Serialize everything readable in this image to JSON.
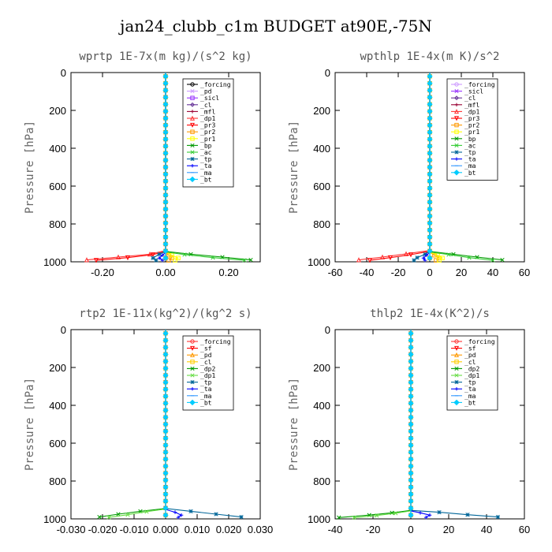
{
  "figure": {
    "title": "jan24_clubb_c1m  BUDGET at90E,-75N"
  },
  "chart_data": [
    {
      "type": "line",
      "title": "wprtp  1E-7x(m kg)/(s^2 kg)",
      "ylabel": "Pressure [hPa]",
      "xlim": [
        -0.3,
        0.3
      ],
      "ylim": [
        1000,
        0
      ],
      "xticks": [
        -0.2,
        0.0,
        0.2
      ],
      "xtick_labels": [
        "-0.20",
        "0.00",
        "0.20"
      ],
      "yticks": [
        0,
        200,
        400,
        600,
        800,
        1000
      ],
      "ytick_labels": [
        "0",
        "200",
        "400",
        "600",
        "800",
        "1000"
      ],
      "legend_position": "top-right",
      "series": [
        {
          "name": "_forcing",
          "color": "#000000",
          "marker": "o",
          "x": [
            0,
            0,
            0,
            0
          ],
          "y": [
            0,
            500,
            940,
            990
          ]
        },
        {
          "name": "_pd",
          "color": "#cc99ff",
          "marker": "x",
          "x": [
            0,
            0,
            0
          ],
          "y": [
            0,
            500,
            990
          ]
        },
        {
          "name": "_sicl",
          "color": "#9933ff",
          "marker": "s",
          "x": [
            0,
            0,
            0
          ],
          "y": [
            0,
            500,
            990
          ]
        },
        {
          "name": "_cl",
          "color": "#663399",
          "marker": "d",
          "x": [
            0,
            0,
            0
          ],
          "y": [
            0,
            500,
            990
          ]
        },
        {
          "name": "_mfl",
          "color": "#990033",
          "marker": "+",
          "x": [
            0,
            0,
            0
          ],
          "y": [
            0,
            500,
            990
          ]
        },
        {
          "name": "_dp1",
          "color": "#ff3333",
          "marker": "^",
          "x": [
            0,
            0,
            -0.05,
            -0.15,
            -0.25
          ],
          "y": [
            0,
            940,
            960,
            975,
            990
          ]
        },
        {
          "name": "_pr3",
          "color": "#ff0000",
          "marker": "v",
          "x": [
            0,
            0,
            -0.04,
            -0.12,
            -0.22
          ],
          "y": [
            0,
            945,
            962,
            978,
            992
          ]
        },
        {
          "name": "_pr2",
          "color": "#ff9900",
          "marker": "s",
          "x": [
            0,
            0,
            0.01,
            0.02,
            0.01
          ],
          "y": [
            0,
            950,
            965,
            980,
            992
          ]
        },
        {
          "name": "_pr1",
          "color": "#ffff00",
          "marker": "s",
          "x": [
            0,
            0,
            0.02,
            0.04,
            0.03
          ],
          "y": [
            0,
            950,
            965,
            980,
            992
          ]
        },
        {
          "name": "_bp",
          "color": "#009900",
          "marker": "x",
          "x": [
            0,
            0,
            0.08,
            0.18,
            0.27
          ],
          "y": [
            0,
            945,
            960,
            975,
            990
          ]
        },
        {
          "name": "_ac",
          "color": "#33cc33",
          "marker": "x",
          "x": [
            0,
            0,
            0.06,
            0.15,
            0.25
          ],
          "y": [
            0,
            948,
            962,
            978,
            992
          ]
        },
        {
          "name": "_tp",
          "color": "#006699",
          "marker": "*",
          "x": [
            0,
            0,
            -0.02,
            -0.04,
            -0.03
          ],
          "y": [
            0,
            945,
            960,
            980,
            992
          ]
        },
        {
          "name": "_ta",
          "color": "#0000ff",
          "marker": "+",
          "x": [
            0,
            0,
            -0.01,
            -0.02,
            -0.01
          ],
          "y": [
            0,
            950,
            965,
            980,
            992
          ]
        },
        {
          "name": "_ma",
          "color": "#3399ff",
          "marker": "-",
          "x": [
            0,
            0,
            0
          ],
          "y": [
            0,
            500,
            990
          ]
        },
        {
          "name": "_bt",
          "color": "#00ccff",
          "marker": "D",
          "x": [
            0,
            0,
            0
          ],
          "y": [
            0,
            500,
            990
          ]
        }
      ]
    },
    {
      "type": "line",
      "title": "wpthlp  1E-4x(m K)/s^2",
      "ylabel": "Pressure [hPa]",
      "xlim": [
        -60,
        60
      ],
      "ylim": [
        1000,
        0
      ],
      "xticks": [
        -60,
        -40,
        -20,
        0,
        20,
        40,
        60
      ],
      "xtick_labels": [
        "-60",
        "-40",
        "-20",
        "0",
        "20",
        "40",
        "60"
      ],
      "yticks": [
        0,
        200,
        400,
        600,
        800,
        1000
      ],
      "ytick_labels": [
        "0",
        "200",
        "400",
        "600",
        "800",
        "1000"
      ],
      "legend_position": "top-right",
      "series": [
        {
          "name": "_forcing",
          "color": "#cc99ff",
          "marker": "o",
          "x": [
            0,
            0,
            0
          ],
          "y": [
            0,
            500,
            990
          ]
        },
        {
          "name": "_sicl",
          "color": "#9933ff",
          "marker": "x",
          "x": [
            0,
            0,
            0
          ],
          "y": [
            0,
            500,
            990
          ]
        },
        {
          "name": "_cl",
          "color": "#663399",
          "marker": "d",
          "x": [
            0,
            0,
            0
          ],
          "y": [
            0,
            500,
            990
          ]
        },
        {
          "name": "_mfl",
          "color": "#990033",
          "marker": "+",
          "x": [
            0,
            0,
            0
          ],
          "y": [
            0,
            500,
            990
          ]
        },
        {
          "name": "_dp1",
          "color": "#ff3333",
          "marker": "^",
          "x": [
            0,
            0,
            -15,
            -30,
            -45
          ],
          "y": [
            0,
            940,
            958,
            975,
            990
          ]
        },
        {
          "name": "_pr3",
          "color": "#ff0000",
          "marker": "v",
          "x": [
            0,
            0,
            -12,
            -25,
            -38
          ],
          "y": [
            0,
            945,
            962,
            978,
            992
          ]
        },
        {
          "name": "_pr2",
          "color": "#ff9900",
          "marker": "s",
          "x": [
            0,
            0,
            3,
            6,
            4
          ],
          "y": [
            0,
            950,
            965,
            980,
            992
          ]
        },
        {
          "name": "_pr1",
          "color": "#ffff00",
          "marker": "s",
          "x": [
            0,
            0,
            5,
            8,
            6
          ],
          "y": [
            0,
            950,
            965,
            980,
            992
          ]
        },
        {
          "name": "_bp",
          "color": "#009900",
          "marker": "x",
          "x": [
            0,
            0,
            15,
            30,
            46
          ],
          "y": [
            0,
            945,
            960,
            975,
            990
          ]
        },
        {
          "name": "_ac",
          "color": "#33cc33",
          "marker": "x",
          "x": [
            0,
            0,
            12,
            25,
            40
          ],
          "y": [
            0,
            948,
            962,
            978,
            992
          ]
        },
        {
          "name": "_tp",
          "color": "#006699",
          "marker": "*",
          "x": [
            0,
            0,
            -3,
            -8,
            -10
          ],
          "y": [
            0,
            945,
            960,
            978,
            992
          ]
        },
        {
          "name": "_ta",
          "color": "#0000ff",
          "marker": "+",
          "x": [
            0,
            0,
            -2,
            -4,
            -3
          ],
          "y": [
            0,
            950,
            965,
            980,
            992
          ]
        },
        {
          "name": "_ma",
          "color": "#3399ff",
          "marker": "-",
          "x": [
            0,
            0,
            0
          ],
          "y": [
            0,
            500,
            990
          ]
        },
        {
          "name": "_bt",
          "color": "#00ccff",
          "marker": "D",
          "x": [
            0,
            0,
            0
          ],
          "y": [
            0,
            500,
            990
          ]
        }
      ]
    },
    {
      "type": "line",
      "title": "rtp2  1E-11x(kg^2)/(kg^2 s)",
      "ylabel": "Pressure [hPa]",
      "xlim": [
        -0.03,
        0.03
      ],
      "ylim": [
        1000,
        0
      ],
      "xticks": [
        -0.03,
        -0.02,
        -0.01,
        0.0,
        0.01,
        0.02,
        0.03
      ],
      "xtick_labels": [
        "-0.030",
        "-0.020",
        "-0.010",
        "0.000",
        "0.010",
        "0.020",
        "0.030"
      ],
      "yticks": [
        0,
        200,
        400,
        600,
        800,
        1000
      ],
      "ytick_labels": [
        "0",
        "200",
        "400",
        "600",
        "800",
        "1000"
      ],
      "legend_position": "top-right",
      "series": [
        {
          "name": "_forcing",
          "color": "#ff3333",
          "marker": "o",
          "x": [
            0,
            0,
            0
          ],
          "y": [
            0,
            500,
            990
          ]
        },
        {
          "name": "_sf",
          "color": "#ff0000",
          "marker": "v",
          "x": [
            0,
            0,
            0
          ],
          "y": [
            0,
            500,
            990
          ]
        },
        {
          "name": "_pd",
          "color": "#ff9900",
          "marker": "^",
          "x": [
            0,
            0,
            0
          ],
          "y": [
            0,
            500,
            990
          ]
        },
        {
          "name": "_cl",
          "color": "#ffcc00",
          "marker": "s",
          "x": [
            0,
            0,
            0
          ],
          "y": [
            0,
            500,
            990
          ]
        },
        {
          "name": "_dp2",
          "color": "#009900",
          "marker": "x",
          "x": [
            0,
            0,
            -0.008,
            -0.015,
            -0.021
          ],
          "y": [
            0,
            945,
            960,
            975,
            990
          ]
        },
        {
          "name": "_dp1",
          "color": "#66dd44",
          "marker": "x",
          "x": [
            0,
            0,
            -0.006,
            -0.012,
            -0.018
          ],
          "y": [
            0,
            948,
            962,
            978,
            992
          ]
        },
        {
          "name": "_tp",
          "color": "#006699",
          "marker": "*",
          "x": [
            0,
            0,
            0.008,
            0.016,
            0.024
          ],
          "y": [
            0,
            945,
            960,
            975,
            990
          ]
        },
        {
          "name": "_ta",
          "color": "#0000ff",
          "marker": "+",
          "x": [
            0,
            0,
            0.003,
            0.005,
            0.004
          ],
          "y": [
            0,
            950,
            965,
            980,
            992
          ]
        },
        {
          "name": "_ma",
          "color": "#3399ff",
          "marker": "-",
          "x": [
            0,
            0,
            0
          ],
          "y": [
            0,
            500,
            990
          ]
        },
        {
          "name": "_bt",
          "color": "#00ccff",
          "marker": "D",
          "x": [
            0,
            0,
            0
          ],
          "y": [
            0,
            500,
            990
          ]
        }
      ]
    },
    {
      "type": "line",
      "title": "thlp2  1E-4x(K^2)/s",
      "ylabel": "Pressure [hPa]",
      "xlim": [
        -40,
        60
      ],
      "ylim": [
        1000,
        0
      ],
      "xticks": [
        -40,
        -20,
        0,
        20,
        40,
        60
      ],
      "xtick_labels": [
        "-40",
        "-20",
        "0",
        "20",
        "40",
        "60"
      ],
      "yticks": [
        0,
        200,
        400,
        600,
        800,
        1000
      ],
      "ytick_labels": [
        "0",
        "200",
        "400",
        "600",
        "800",
        "1000"
      ],
      "legend_position": "top-right",
      "series": [
        {
          "name": "_forcing",
          "color": "#ff3333",
          "marker": "o",
          "x": [
            0,
            0,
            0
          ],
          "y": [
            0,
            500,
            990
          ]
        },
        {
          "name": "_sf",
          "color": "#ff0000",
          "marker": "v",
          "x": [
            0,
            0,
            0
          ],
          "y": [
            0,
            500,
            990
          ]
        },
        {
          "name": "_pd",
          "color": "#ff9900",
          "marker": "^",
          "x": [
            0,
            0,
            0
          ],
          "y": [
            0,
            500,
            990
          ]
        },
        {
          "name": "_cl",
          "color": "#ffcc00",
          "marker": "s",
          "x": [
            0,
            0,
            0
          ],
          "y": [
            0,
            500,
            990
          ]
        },
        {
          "name": "_dp2",
          "color": "#009900",
          "marker": "x",
          "x": [
            0,
            0,
            -10,
            -22,
            -38
          ],
          "y": [
            0,
            955,
            968,
            980,
            993
          ]
        },
        {
          "name": "_dp1",
          "color": "#66dd44",
          "marker": "x",
          "x": [
            0,
            0,
            -8,
            -18,
            -30
          ],
          "y": [
            0,
            958,
            970,
            982,
            994
          ]
        },
        {
          "name": "_tp",
          "color": "#006699",
          "marker": "*",
          "x": [
            0,
            0,
            15,
            30,
            46
          ],
          "y": [
            0,
            955,
            965,
            978,
            990
          ]
        },
        {
          "name": "_ta",
          "color": "#0000ff",
          "marker": "+",
          "x": [
            0,
            0,
            5,
            10,
            8
          ],
          "y": [
            0,
            958,
            968,
            980,
            992
          ]
        },
        {
          "name": "_ma",
          "color": "#3399ff",
          "marker": "-",
          "x": [
            0,
            0,
            0
          ],
          "y": [
            0,
            500,
            990
          ]
        },
        {
          "name": "_bt",
          "color": "#00ccff",
          "marker": "D",
          "x": [
            0,
            0,
            0
          ],
          "y": [
            0,
            500,
            990
          ]
        }
      ]
    }
  ]
}
